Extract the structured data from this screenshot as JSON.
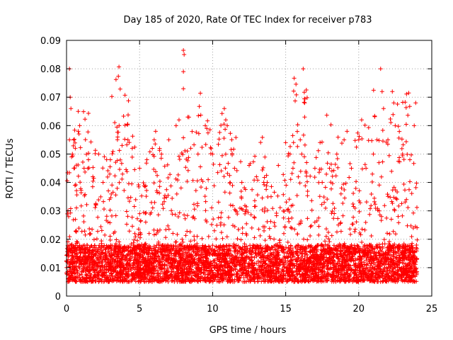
{
  "chart_data": {
    "type": "scatter",
    "title": "Day 185 of 2020, Rate Of TEC Index for receiver p783",
    "xlabel": "GPS time / hours",
    "ylabel": "ROTI / TECUs",
    "xlim": [
      0,
      25
    ],
    "ylim": [
      0,
      0.09
    ],
    "x_ticks": [
      "0",
      "5",
      "10",
      "15",
      "20",
      "25"
    ],
    "y_ticks": [
      "0",
      "0.01",
      "0.02",
      "0.03",
      "0.04",
      "0.05",
      "0.06",
      "0.07",
      "0.08",
      "0.09"
    ],
    "grid": true,
    "marker": "+",
    "color": "#ff0000",
    "series": [
      {
        "points": [
          [
            0.1,
            0.03
          ],
          [
            0.2,
            0.08
          ],
          [
            0.2,
            0.055
          ],
          [
            0.25,
            0.07
          ],
          [
            0.3,
            0.066
          ],
          [
            0.4,
            0.05
          ],
          [
            0.5,
            0.045
          ],
          [
            0.6,
            0.052
          ],
          [
            0.8,
            0.065
          ],
          [
            0.8,
            0.058
          ],
          [
            0.9,
            0.06
          ],
          [
            1.2,
            0.045
          ],
          [
            1.5,
            0.048
          ],
          [
            1.8,
            0.042
          ],
          [
            2.2,
            0.05
          ],
          [
            2.5,
            0.04
          ],
          [
            3.0,
            0.048
          ],
          [
            3.5,
            0.056
          ],
          [
            3.6,
            0.06
          ],
          [
            3.8,
            0.053
          ],
          [
            4.2,
            0.055
          ],
          [
            4.5,
            0.052
          ],
          [
            5.0,
            0.045
          ],
          [
            5.5,
            0.048
          ],
          [
            6.0,
            0.055
          ],
          [
            6.1,
            0.058
          ],
          [
            6.5,
            0.05
          ],
          [
            7.0,
            0.055
          ],
          [
            7.5,
            0.06
          ],
          [
            7.7,
            0.062
          ],
          [
            8.0,
            0.0865
          ],
          [
            8.05,
            0.085
          ],
          [
            8.0,
            0.079
          ],
          [
            8.0,
            0.073
          ],
          [
            8.3,
            0.063
          ],
          [
            8.5,
            0.052
          ],
          [
            9.0,
            0.05
          ],
          [
            9.5,
            0.06
          ],
          [
            9.6,
            0.059
          ],
          [
            10.0,
            0.05
          ],
          [
            10.8,
            0.066
          ],
          [
            10.9,
            0.062
          ],
          [
            11.0,
            0.06
          ],
          [
            11.5,
            0.045
          ],
          [
            12.0,
            0.04
          ],
          [
            12.5,
            0.046
          ],
          [
            13.0,
            0.042
          ],
          [
            13.5,
            0.04
          ],
          [
            14.0,
            0.035
          ],
          [
            14.5,
            0.046
          ],
          [
            15.0,
            0.054
          ],
          [
            15.3,
            0.05
          ],
          [
            15.5,
            0.045
          ],
          [
            16.0,
            0.055
          ],
          [
            16.1,
            0.05
          ],
          [
            16.2,
            0.08
          ],
          [
            16.3,
            0.068
          ],
          [
            16.3,
            0.063
          ],
          [
            17.0,
            0.045
          ],
          [
            17.5,
            0.04
          ],
          [
            18.0,
            0.045
          ],
          [
            18.5,
            0.05
          ],
          [
            19.0,
            0.055
          ],
          [
            19.2,
            0.058
          ],
          [
            19.5,
            0.045
          ],
          [
            20.0,
            0.055
          ],
          [
            20.2,
            0.062
          ],
          [
            20.5,
            0.045
          ],
          [
            21.0,
            0.05
          ],
          [
            21.5,
            0.08
          ],
          [
            21.6,
            0.072
          ],
          [
            21.7,
            0.066
          ],
          [
            22.0,
            0.055
          ],
          [
            22.3,
            0.072
          ],
          [
            22.4,
            0.068
          ],
          [
            22.5,
            0.06
          ],
          [
            23.0,
            0.05
          ],
          [
            23.5,
            0.048
          ],
          [
            23.8,
            0.06
          ],
          [
            23.9,
            0.068
          ]
        ]
      }
    ]
  }
}
